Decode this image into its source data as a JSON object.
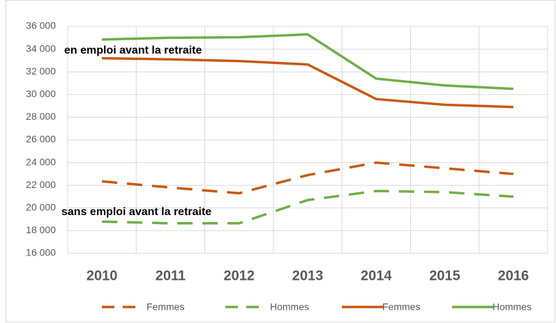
{
  "chart_data": {
    "type": "line",
    "categories": [
      "2010",
      "2011",
      "2012",
      "2013",
      "2014",
      "2015",
      "2016"
    ],
    "series": [
      {
        "name": "Femmes",
        "color": "#c55a11",
        "dashed": true,
        "values": [
          22350,
          21800,
          21300,
          22900,
          24000,
          23500,
          23000
        ]
      },
      {
        "name": "Hommes",
        "color": "#70ad47",
        "dashed": true,
        "values": [
          18800,
          18650,
          18650,
          20700,
          21500,
          21400,
          21000
        ]
      },
      {
        "name": "Femmes",
        "color": "#c55a11",
        "dashed": false,
        "values": [
          33200,
          33100,
          32950,
          32650,
          29600,
          29100,
          28900
        ]
      },
      {
        "name": "Hommes",
        "color": "#70ad47",
        "dashed": false,
        "values": [
          34850,
          35000,
          35050,
          35300,
          31400,
          30800,
          30500
        ]
      }
    ],
    "annotations": [
      "en emploi avant la retraite",
      "sans emploi avant la retraite"
    ],
    "ylim": [
      16000,
      36000
    ],
    "yticks": [
      {
        "value": 16000,
        "label": "16 000"
      },
      {
        "value": 18000,
        "label": "18 000"
      },
      {
        "value": 20000,
        "label": "20 000"
      },
      {
        "value": 22000,
        "label": "22 000"
      },
      {
        "value": 24000,
        "label": "24 000"
      },
      {
        "value": 26000,
        "label": "26 000"
      },
      {
        "value": 28000,
        "label": "28 000"
      },
      {
        "value": 30000,
        "label": "30 000"
      },
      {
        "value": 32000,
        "label": "32 000"
      },
      {
        "value": 34000,
        "label": "34 000"
      },
      {
        "value": 36000,
        "label": "36 000"
      }
    ],
    "grid": true
  }
}
